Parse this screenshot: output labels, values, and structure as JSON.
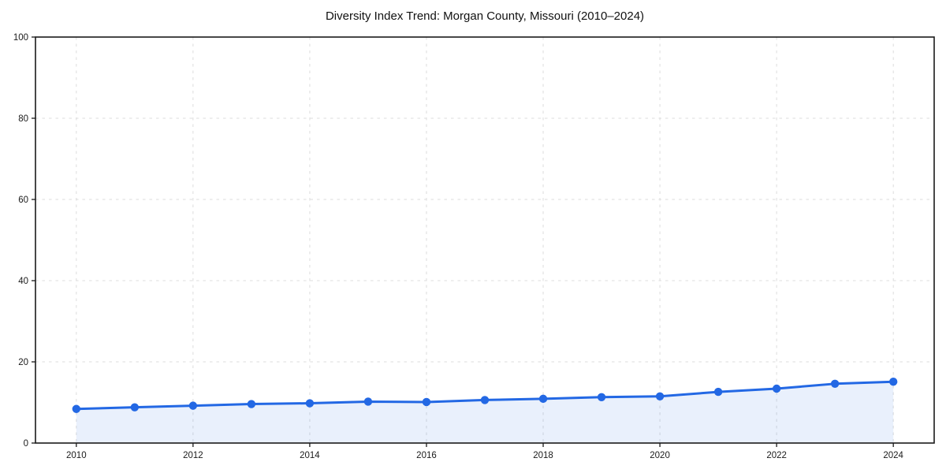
{
  "page": {
    "background": "#ffffff"
  },
  "chart_data": {
    "type": "area",
    "title": "Diversity Index Trend: Morgan County, Missouri (2010–2024)",
    "x": [
      2010,
      2011,
      2012,
      2013,
      2014,
      2015,
      2016,
      2017,
      2018,
      2019,
      2020,
      2021,
      2022,
      2023,
      2024
    ],
    "values": [
      8.4,
      8.8,
      9.2,
      9.6,
      9.8,
      10.2,
      10.1,
      10.6,
      10.9,
      11.3,
      11.5,
      12.6,
      13.4,
      14.6,
      15.1
    ],
    "xlabel": "",
    "ylabel": "",
    "ylim": [
      0,
      100
    ],
    "yticks": [
      0,
      20,
      40,
      60,
      80,
      100
    ],
    "xticks": [
      2010,
      2012,
      2014,
      2016,
      2018,
      2020,
      2022,
      2024
    ],
    "x_margin_frac": 0.05,
    "grid": true,
    "grid_style": "dashed",
    "legend": "none",
    "colors": {
      "line": "#2368e4",
      "fill": "#2368e41a",
      "grid": "#dcdcdc",
      "axis": "#1a1a1a",
      "text": "#1a1a1a"
    }
  }
}
